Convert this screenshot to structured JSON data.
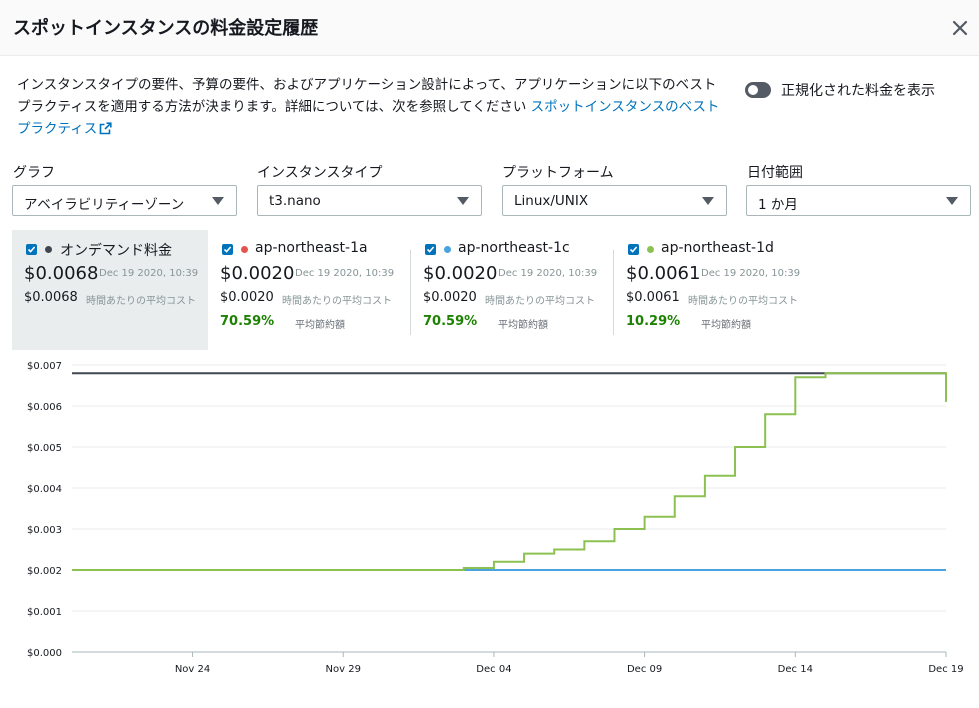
{
  "header": {
    "title": "スポットインスタンスの料金設定履歴"
  },
  "description": {
    "text": "インスタンスタイプの要件、予算の要件、およびアプリケーション設計によって、アプリケーションに以下のベストプラクティスを適用する方法が決まります。詳細については、次を参照してください ",
    "link_text": "スポットインスタンスのベストプラクティス"
  },
  "toggle": {
    "label": "正規化された料金を表示",
    "on": false
  },
  "filters": [
    {
      "label": "グラフ",
      "value": "アベイラビリティーゾーン"
    },
    {
      "label": "インスタンスタイプ",
      "value": "t3.nano"
    },
    {
      "label": "プラットフォーム",
      "value": "Linux/UNIX"
    },
    {
      "label": "日付範囲",
      "value": "1 か月"
    }
  ],
  "cards": [
    {
      "name": "オンデマンド料金",
      "color": "#414750",
      "price": "$0.0068",
      "timestamp": "Dec 19 2020, 10:39",
      "avg": "$0.0068",
      "avg_label": "時間あたりの平均コスト",
      "savings": "",
      "savings_label": "",
      "active": true
    },
    {
      "name": "ap-northeast-1a",
      "color": "#e4534d",
      "price": "$0.0020",
      "timestamp": "Dec 19 2020, 10:39",
      "avg": "$0.0020",
      "avg_label": "時間あたりの平均コスト",
      "savings": "70.59%",
      "savings_label": "平均節約額",
      "active": false
    },
    {
      "name": "ap-northeast-1c",
      "color": "#4aa3df",
      "price": "$0.0020",
      "timestamp": "Dec 19 2020, 10:39",
      "avg": "$0.0020",
      "avg_label": "時間あたりの平均コスト",
      "savings": "70.59%",
      "savings_label": "平均節約額",
      "active": false
    },
    {
      "name": "ap-northeast-1d",
      "color": "#8cc152",
      "price": "$0.0061",
      "timestamp": "Dec 19 2020, 10:39",
      "avg": "$0.0061",
      "avg_label": "時間あたりの平均コスト",
      "savings": "10.29%",
      "savings_label": "平均節約額",
      "active": false
    }
  ],
  "chart_data": {
    "type": "line",
    "title": "",
    "xlabel": "",
    "ylabel": "",
    "x_range": [
      "2020-11-20",
      "2020-12-19"
    ],
    "ylim": [
      0,
      0.007
    ],
    "y_ticks": [
      "$0.007",
      "$0.006",
      "$0.005",
      "$0.004",
      "$0.003",
      "$0.002",
      "$0.001",
      "$0.000"
    ],
    "x_ticks": [
      {
        "label": "Nov 24",
        "date": "2020-11-24"
      },
      {
        "label": "Nov 29",
        "date": "2020-11-29"
      },
      {
        "label": "Dec 04",
        "date": "2020-12-04"
      },
      {
        "label": "Dec 09",
        "date": "2020-12-09"
      },
      {
        "label": "Dec 14",
        "date": "2020-12-14"
      },
      {
        "label": "Dec 19",
        "date": "2020-12-19"
      }
    ],
    "grid": true,
    "series": [
      {
        "name": "オンデマンド料金",
        "color": "#414750",
        "step": true,
        "points": [
          [
            "2020-11-20",
            0.0068
          ],
          [
            "2020-12-19",
            0.0068
          ]
        ]
      },
      {
        "name": "ap-northeast-1c",
        "color": "#4aa3df",
        "step": true,
        "points": [
          [
            "2020-11-20",
            0.002
          ],
          [
            "2020-12-19",
            0.002
          ]
        ]
      },
      {
        "name": "ap-northeast-1d",
        "color": "#8cc152",
        "step": true,
        "points": [
          [
            "2020-11-20",
            0.002
          ],
          [
            "2020-12-03",
            0.002
          ],
          [
            "2020-12-03",
            0.00205
          ],
          [
            "2020-12-04",
            0.0022
          ],
          [
            "2020-12-05",
            0.0024
          ],
          [
            "2020-12-06",
            0.0025
          ],
          [
            "2020-12-07",
            0.0027
          ],
          [
            "2020-12-08",
            0.003
          ],
          [
            "2020-12-09",
            0.0033
          ],
          [
            "2020-12-10",
            0.0038
          ],
          [
            "2020-12-11",
            0.0043
          ],
          [
            "2020-12-12",
            0.005
          ],
          [
            "2020-12-13",
            0.0058
          ],
          [
            "2020-12-14",
            0.0067
          ],
          [
            "2020-12-15",
            0.0068
          ],
          [
            "2020-12-18",
            0.0068
          ],
          [
            "2020-12-19",
            0.0061
          ]
        ]
      }
    ]
  }
}
